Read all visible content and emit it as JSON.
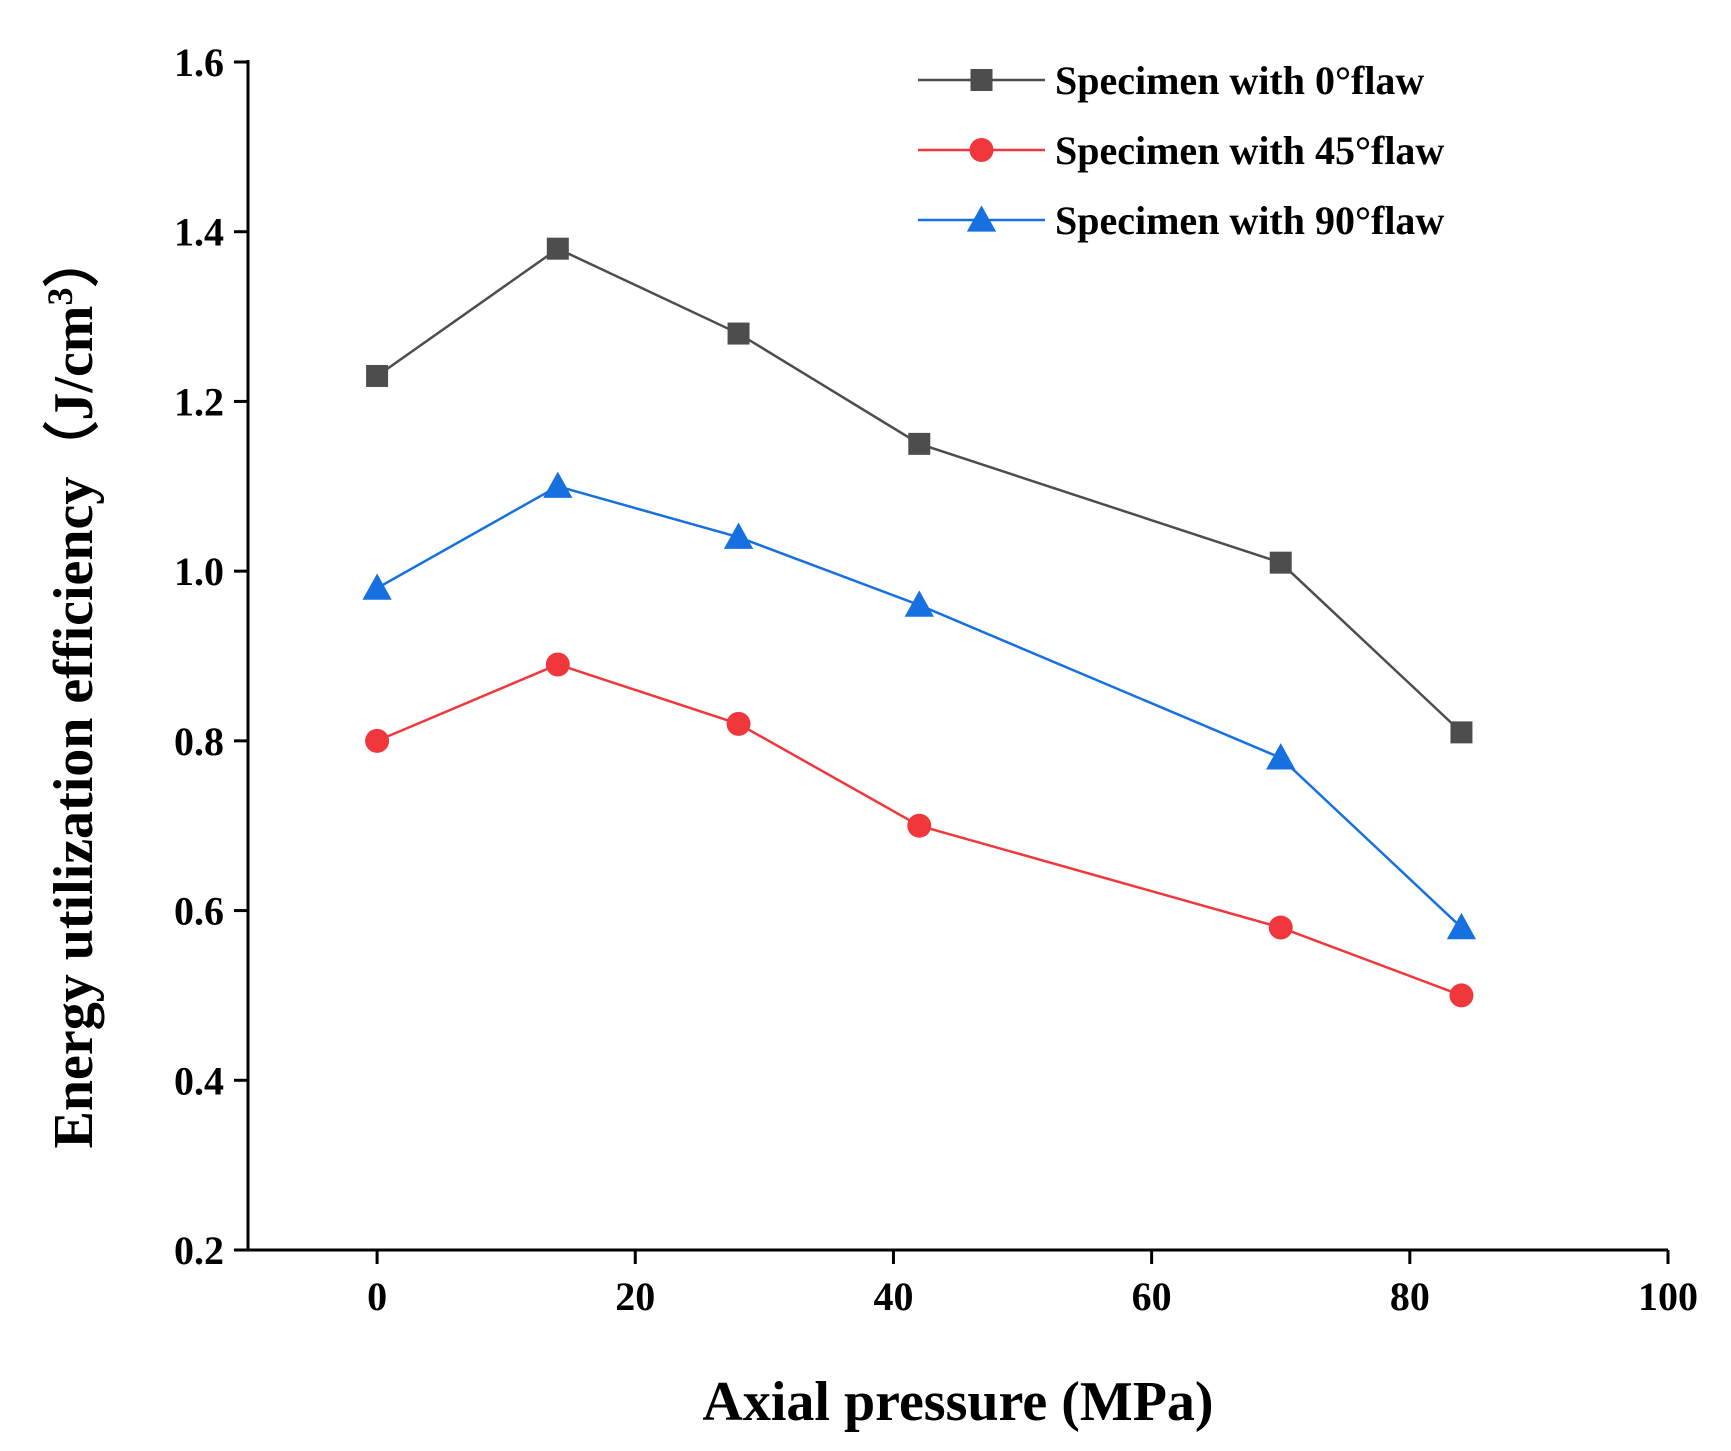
{
  "chart_data": {
    "type": "line",
    "title": "",
    "xlabel": "Axial pressure (MPa)",
    "ylabel_main": "Energy utilization efficiency（J/cm",
    "ylabel_sup": "3",
    "ylabel_close": "）",
    "xlim": [
      -10,
      100
    ],
    "ylim": [
      0.2,
      1.6
    ],
    "xticks": [
      0,
      20,
      40,
      60,
      80,
      100
    ],
    "xtick_labels": [
      "0",
      "20",
      "40",
      "60",
      "80",
      "100"
    ],
    "yticks": [
      0.2,
      0.4,
      0.6,
      0.8,
      1.0,
      1.2,
      1.4,
      1.6
    ],
    "ytick_labels": [
      "0.2",
      "0.4",
      "0.6",
      "0.8",
      "1.0",
      "1.2",
      "1.4",
      "1.6"
    ],
    "x": [
      0,
      14,
      28,
      42,
      70,
      84
    ],
    "legend_position": "top-right",
    "grid": false,
    "series": [
      {
        "name": "Specimen with 0°flaw",
        "marker": "square",
        "color": "#4d4d4d",
        "values": [
          1.23,
          1.38,
          1.28,
          1.15,
          1.01,
          0.81
        ]
      },
      {
        "name": "Specimen with 45°flaw",
        "marker": "circle",
        "color": "#f0373c",
        "values": [
          0.8,
          0.89,
          0.82,
          0.7,
          0.58,
          0.5
        ]
      },
      {
        "name": "Specimen with 90°flaw",
        "marker": "triangle",
        "color": "#1770e0",
        "values": [
          0.98,
          1.1,
          1.04,
          0.96,
          0.78,
          0.58
        ]
      }
    ]
  }
}
